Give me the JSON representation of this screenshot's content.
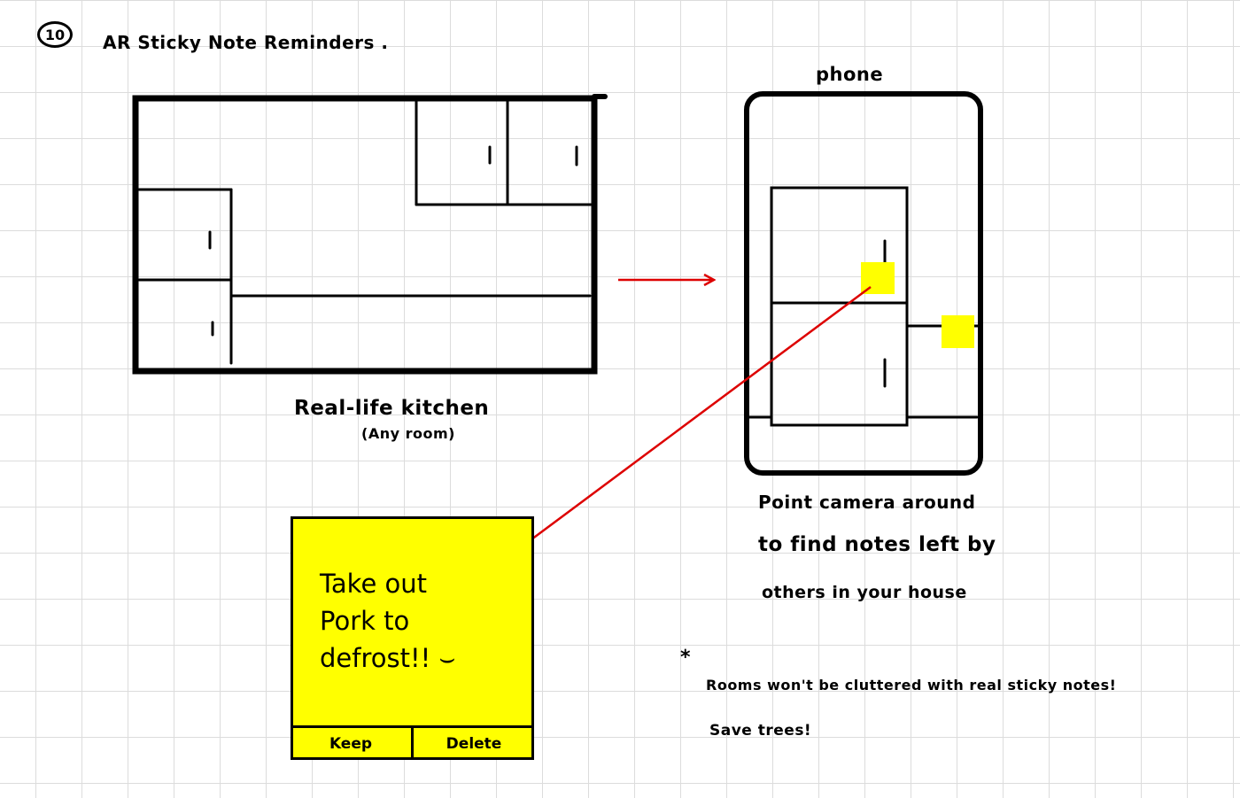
{
  "header": {
    "number": "10",
    "title": "AR Sticky Note Reminders ."
  },
  "kitchen": {
    "label": "Real-life kitchen",
    "sublabel": "(Any room)"
  },
  "phone": {
    "label": "phone",
    "caption": [
      "Point camera around",
      "to find notes left by",
      "others in your house"
    ]
  },
  "sticky_note": {
    "text": "Take out\nPork to\ndefrost!! ⌣",
    "keep_label": "Keep",
    "delete_label": "Delete",
    "color": "#ffff00"
  },
  "notes": {
    "bullet": "*",
    "line1": "Rooms won't be cluttered with real sticky notes!",
    "line2": "Save trees!"
  },
  "colors": {
    "ink": "#000000",
    "arrow": "#dd0000",
    "sticky": "#ffff00",
    "grid": "#dcdcdc"
  }
}
